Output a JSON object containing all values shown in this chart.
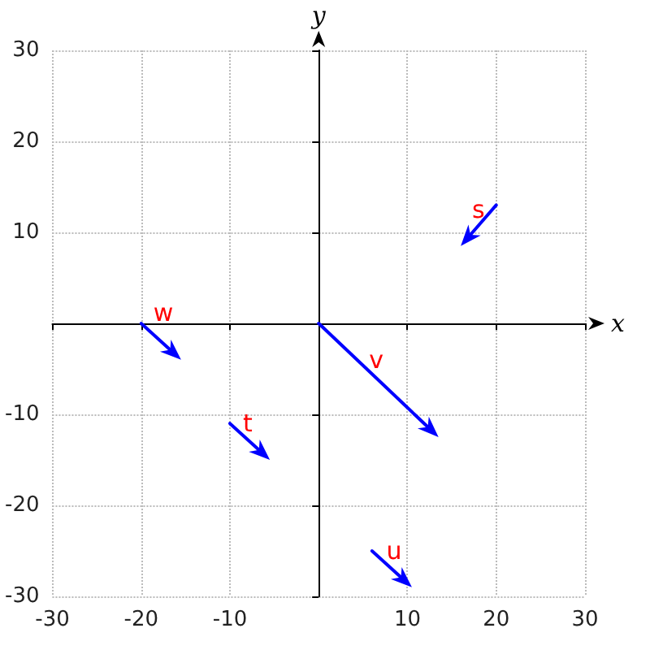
{
  "chart_data": {
    "type": "line",
    "xlabel": "x",
    "ylabel": "y",
    "xlim": [
      -30,
      30
    ],
    "ylim": [
      -30,
      30
    ],
    "xticks": [
      -30,
      -20,
      -10,
      {
        "value": 0,
        "label": null
      },
      10,
      20,
      30
    ],
    "yticks": [
      -30,
      -20,
      -10,
      {
        "value": 0,
        "label": null
      },
      10,
      20,
      30
    ],
    "grid": true,
    "annotations": [
      "s",
      "w",
      "t",
      "v",
      "u"
    ]
  }
}
